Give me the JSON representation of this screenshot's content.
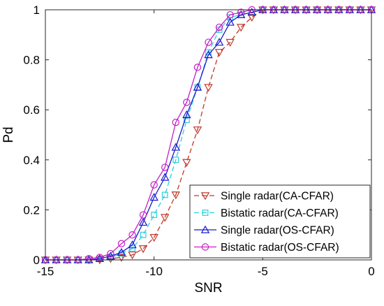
{
  "chart_data": {
    "type": "line",
    "xlabel": "SNR",
    "ylabel": "Pd",
    "xlim": [
      -15,
      0
    ],
    "ylim": [
      0,
      1
    ],
    "xticks": [
      "-15",
      "-10",
      "-5",
      "0"
    ],
    "yticks": [
      "0",
      "0.2",
      "0.4",
      "0.6",
      "0.8",
      "1"
    ],
    "grid": false,
    "legend_position": "bottom-right",
    "x": [
      -15,
      -14.5,
      -14,
      -13.5,
      -13,
      -12.5,
      -12,
      -11.5,
      -11,
      -10.5,
      -10,
      -9.5,
      -9,
      -8.5,
      -8,
      -7.5,
      -7,
      -6.5,
      -6,
      -5.5,
      -5,
      -4.5,
      -4,
      -3.5,
      -3,
      -2.5,
      -2,
      -1.5,
      -1,
      -0.5,
      0
    ],
    "series": [
      {
        "name": "Single radar(CA-CFAR)",
        "color": "#c0392b",
        "line_style": "dashed",
        "marker": "triangle-down",
        "values": [
          0,
          0,
          0,
          0,
          0,
          0,
          0.005,
          0.01,
          0.02,
          0.045,
          0.09,
          0.17,
          0.26,
          0.39,
          0.52,
          0.69,
          0.83,
          0.87,
          0.93,
          0.97,
          1,
          1,
          1,
          1,
          1,
          1,
          1,
          1,
          1,
          1,
          1
        ]
      },
      {
        "name": "Bistatic radar(CA-CFAR)",
        "color": "#2bcfdc",
        "line_style": "dashed",
        "marker": "square",
        "values": [
          0,
          0,
          0,
          0,
          0,
          0.005,
          0.01,
          0.025,
          0.045,
          0.1,
          0.18,
          0.26,
          0.4,
          0.56,
          0.69,
          0.83,
          0.92,
          0.97,
          0.98,
          0.99,
          1,
          1,
          1,
          1,
          1,
          1,
          1,
          1,
          1,
          1,
          1
        ]
      },
      {
        "name": "Single radar(OS-CFAR)",
        "color": "#1a1acc",
        "line_style": "solid",
        "marker": "triangle-up",
        "values": [
          0,
          0,
          0,
          0,
          0,
          0.005,
          0.015,
          0.03,
          0.06,
          0.15,
          0.25,
          0.33,
          0.45,
          0.58,
          0.69,
          0.82,
          0.87,
          0.95,
          0.98,
          0.99,
          1,
          1,
          1,
          1,
          1,
          1,
          1,
          1,
          1,
          1,
          1
        ]
      },
      {
        "name": "Bistatic radar(OS-CFAR)",
        "color": "#c61ec6",
        "line_style": "solid",
        "marker": "circle",
        "values": [
          0,
          0,
          0,
          0,
          0.005,
          0.01,
          0.025,
          0.065,
          0.1,
          0.18,
          0.3,
          0.37,
          0.55,
          0.63,
          0.77,
          0.87,
          0.93,
          0.98,
          0.99,
          1,
          1,
          1,
          1,
          1,
          1,
          1,
          1,
          1,
          1,
          1,
          1
        ]
      }
    ]
  }
}
